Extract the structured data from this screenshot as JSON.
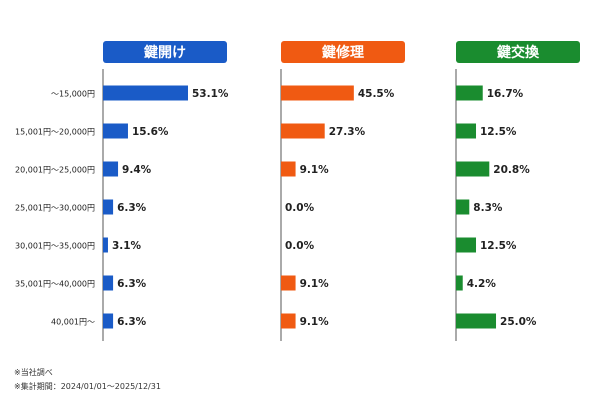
{
  "chart_data": {
    "type": "bar",
    "orientation": "horizontal",
    "categories": [
      "～15,000円",
      "15,001円～20,000円",
      "20,001円～25,000円",
      "25,001円～30,000円",
      "30,001円～35,000円",
      "35,001円～40,000円",
      "40,001円～"
    ],
    "series": [
      {
        "name": "鍵開け",
        "values": [
          53.1,
          15.6,
          9.4,
          6.3,
          3.1,
          6.3,
          6.3
        ],
        "labels": [
          "53.1%",
          "15.6%",
          "9.4%",
          "6.3%",
          "3.1%",
          "6.3%",
          "6.3%"
        ],
        "color": "#1a5bc7"
      },
      {
        "name": "鍵修理",
        "values": [
          45.5,
          27.3,
          9.1,
          0.0,
          0.0,
          9.1,
          9.1
        ],
        "labels": [
          "45.5%",
          "27.3%",
          "9.1%",
          "0.0%",
          "0.0%",
          "9.1%",
          "9.1%"
        ],
        "color": "#f05a12"
      },
      {
        "name": "鍵交換",
        "values": [
          16.7,
          12.5,
          20.8,
          8.3,
          12.5,
          4.2,
          25.0
        ],
        "labels": [
          "16.7%",
          "12.5%",
          "20.8%",
          "8.3%",
          "12.5%",
          "4.2%",
          "25.0%"
        ],
        "color": "#1a8c2f"
      }
    ],
    "unit": "%",
    "legend": "panel headers"
  },
  "notes": [
    "※当社調べ",
    "※集計期間：2024/01/01～2025/12/31"
  ]
}
